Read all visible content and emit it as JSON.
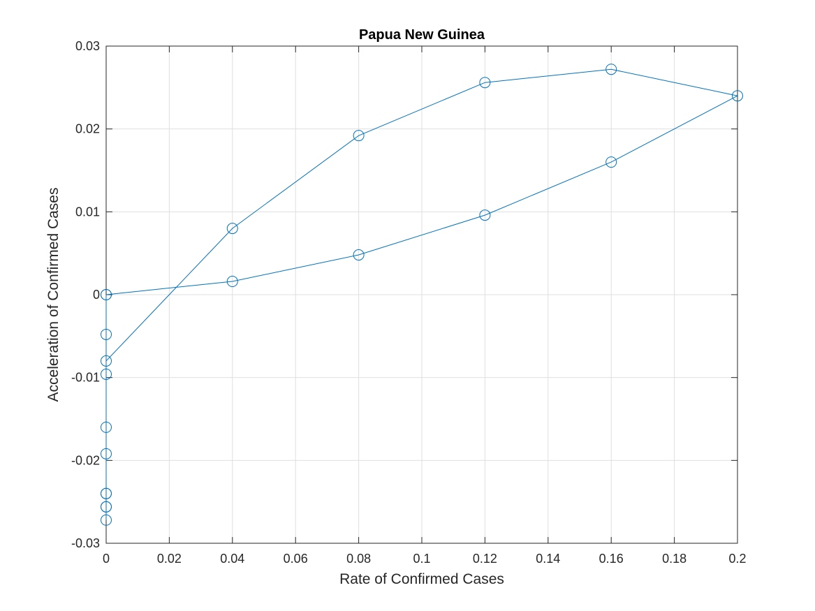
{
  "chart_data": {
    "type": "line",
    "title": "Papua New Guinea",
    "xlabel": "Rate of Confirmed Cases",
    "ylabel": "Acceleration of Confirmed Cases",
    "xlim": [
      0,
      0.2
    ],
    "ylim": [
      -0.03,
      0.03
    ],
    "grid": true,
    "marker": "circle",
    "series_color": "#0072BD",
    "x_ticks": [
      "0",
      "0.02",
      "0.04",
      "0.06",
      "0.08",
      "0.1",
      "0.12",
      "0.14",
      "0.16",
      "0.18",
      "0.2"
    ],
    "y_ticks": [
      "-0.03",
      "-0.02",
      "-0.01",
      "0",
      "0.01",
      "0.02",
      "0.03"
    ],
    "series": [
      {
        "x": [
          0,
          0.04,
          0.08,
          0.12,
          0.16,
          0.2,
          0.16,
          0.12,
          0.08,
          0.04,
          0,
          0,
          0,
          0,
          0,
          0,
          0,
          0,
          0,
          0,
          0
        ],
        "y": [
          0,
          0.0016,
          0.0048,
          0.0096,
          0.016,
          0.024,
          0.0272,
          0.0256,
          0.0192,
          0.008,
          -0.008,
          -0.0096,
          -0.016,
          -0.0192,
          -0.024,
          -0.0256,
          -0.0272,
          -0.0256,
          -0.024,
          -0.0048,
          0.0
        ],
        "order_note": ""
      }
    ]
  }
}
